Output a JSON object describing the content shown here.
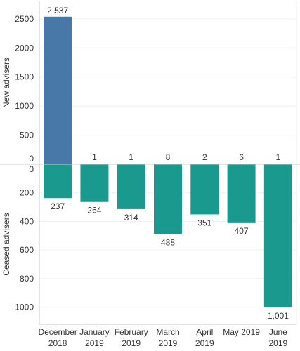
{
  "chart_data": {
    "type": "bar",
    "categories": [
      [
        "December",
        "2018"
      ],
      [
        "January",
        "2019"
      ],
      [
        "February",
        "2019"
      ],
      [
        "March",
        "2019"
      ],
      [
        "April",
        "2019"
      ],
      [
        "May 2019"
      ],
      [
        "June",
        "2019"
      ]
    ],
    "series": [
      {
        "name": "New advisers",
        "values": [
          2537,
          1,
          1,
          8,
          2,
          6,
          1
        ],
        "labels": [
          "2,537",
          "1",
          "1",
          "8",
          "2",
          "6",
          "1"
        ]
      },
      {
        "name": "Ceased advisers",
        "values": [
          237,
          264,
          314,
          488,
          351,
          407,
          1001
        ],
        "labels": [
          "237",
          "264",
          "314",
          "488",
          "351",
          "407",
          "1,001"
        ]
      }
    ],
    "top_panel": {
      "ylabel": "New advisers",
      "ylim": [
        0,
        2800
      ],
      "ticks": [
        "0",
        "500",
        "1000",
        "1500",
        "2000",
        "2500"
      ],
      "tick_values": [
        0,
        500,
        1000,
        1500,
        2000,
        2500
      ]
    },
    "bottom_panel": {
      "ylabel": "Ceased advisers",
      "ylim": [
        0,
        1120
      ],
      "ticks": [
        "0",
        "200",
        "400",
        "600",
        "800",
        "1000"
      ],
      "tick_values": [
        0,
        200,
        400,
        600,
        800,
        1000
      ]
    },
    "colors": {
      "new_first": "#4878a8",
      "new_other": "#1a9a8e",
      "ceased": "#1a9a8e",
      "grid": "#efefef",
      "axis": "#c8c8c8"
    },
    "grid": true,
    "legend": "none"
  }
}
